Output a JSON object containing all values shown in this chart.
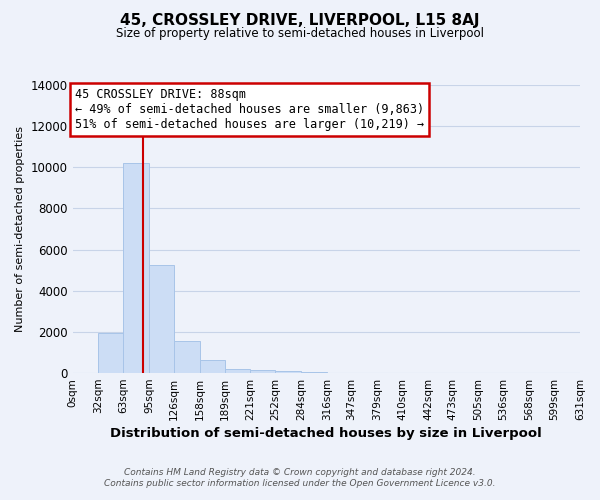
{
  "title": "45, CROSSLEY DRIVE, LIVERPOOL, L15 8AJ",
  "subtitle": "Size of property relative to semi-detached houses in Liverpool",
  "xlabel": "Distribution of semi-detached houses by size in Liverpool",
  "ylabel": "Number of semi-detached properties",
  "bar_edges": [
    0,
    32,
    63,
    95,
    126,
    158,
    189,
    221,
    252,
    284,
    316,
    347,
    379,
    410,
    442,
    473,
    505,
    536,
    568,
    599,
    631
  ],
  "bar_heights": [
    0,
    1950,
    10200,
    5250,
    1580,
    650,
    220,
    130,
    80,
    30,
    10,
    0,
    0,
    0,
    0,
    0,
    0,
    0,
    0,
    0
  ],
  "bar_color": "#ccddf5",
  "bar_edge_color": "#a8c4e8",
  "property_line_x": 88,
  "property_line_color": "#cc0000",
  "ylim": [
    0,
    14000
  ],
  "yticks": [
    0,
    2000,
    4000,
    6000,
    8000,
    10000,
    12000,
    14000
  ],
  "tick_labels": [
    "0sqm",
    "32sqm",
    "63sqm",
    "95sqm",
    "126sqm",
    "158sqm",
    "189sqm",
    "221sqm",
    "252sqm",
    "284sqm",
    "316sqm",
    "347sqm",
    "379sqm",
    "410sqm",
    "442sqm",
    "473sqm",
    "505sqm",
    "536sqm",
    "568sqm",
    "599sqm",
    "631sqm"
  ],
  "annotation_title": "45 CROSSLEY DRIVE: 88sqm",
  "annotation_line1": "← 49% of semi-detached houses are smaller (9,863)",
  "annotation_line2": "51% of semi-detached houses are larger (10,219) →",
  "annotation_box_color": "#ffffff",
  "annotation_box_edge": "#cc0000",
  "footnote1": "Contains HM Land Registry data © Crown copyright and database right 2024.",
  "footnote2": "Contains public sector information licensed under the Open Government Licence v3.0.",
  "grid_color": "#c8d4e8",
  "background_color": "#eef2fa"
}
